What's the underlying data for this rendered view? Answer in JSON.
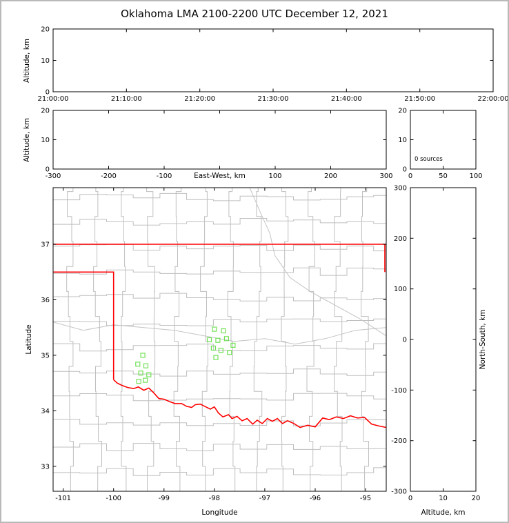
{
  "title": "Oklahoma LMA 2100-2200 UTC December 12, 2021",
  "colors": {
    "state_border": "#ff0000",
    "county_line": "#bfbfbf",
    "river_line": "#c4c4c4",
    "station_marker": "#70e054",
    "axis": "#000000",
    "plot_background": "#ffffff",
    "frame_border": "#b9b9b9"
  },
  "chart_data": [
    {
      "id": "time-height-panel",
      "type": "scatter",
      "xlabel": "",
      "ylabel": "Altitude, km",
      "xticks": [
        "21:00:00",
        "21:10:00",
        "21:20:00",
        "21:30:00",
        "21:40:00",
        "21:50:00",
        "22:00:00"
      ],
      "ylim": [
        0,
        20
      ],
      "yticks": [
        0,
        10,
        20
      ],
      "points": []
    },
    {
      "id": "eastwest-height-panel",
      "type": "scatter",
      "xlabel": "East-West, km",
      "ylabel": "Altitude, km",
      "xlim": [
        -300,
        300
      ],
      "xticks": [
        -300,
        -200,
        -100,
        0,
        100,
        200,
        300
      ],
      "ylim": [
        0,
        20
      ],
      "yticks": [
        0,
        10,
        20
      ],
      "points": []
    },
    {
      "id": "altitude-histogram-panel",
      "type": "line",
      "annotation": "0 sources",
      "xlim": [
        0,
        100
      ],
      "xticks": [
        0,
        50,
        100
      ],
      "ylim": [
        0,
        20
      ],
      "yticks": [
        0,
        10,
        20
      ],
      "points": []
    },
    {
      "id": "plan-view-map",
      "type": "scatter",
      "xlabel": "Longitude",
      "ylabel": "Latitude",
      "xlim": [
        -101.2,
        -94.59
      ],
      "xticks": [
        -101,
        -100,
        -99,
        -98,
        -97,
        -96,
        -95
      ],
      "ylim": [
        32.55,
        38.02
      ],
      "yticks": [
        33,
        34,
        35,
        36,
        37
      ],
      "stations": [
        [
          -98.0,
          35.47
        ],
        [
          -97.82,
          35.44
        ],
        [
          -98.1,
          35.28
        ],
        [
          -97.93,
          35.27
        ],
        [
          -97.76,
          35.3
        ],
        [
          -98.02,
          35.13
        ],
        [
          -97.87,
          35.09
        ],
        [
          -97.97,
          34.96
        ],
        [
          -97.63,
          35.18
        ],
        [
          -97.7,
          35.05
        ],
        [
          -99.42,
          35.0
        ],
        [
          -99.52,
          34.84
        ],
        [
          -99.36,
          34.81
        ],
        [
          -99.46,
          34.68
        ],
        [
          -99.3,
          34.65
        ],
        [
          -99.5,
          34.53
        ],
        [
          -99.37,
          34.55
        ]
      ],
      "state_boundary": {
        "north_lat": 37.0,
        "panhandle_south_lat": 36.5,
        "west_lon": -100.0,
        "east_lon": -94.618,
        "red_river": [
          [
            -100.0,
            34.56
          ],
          [
            -99.93,
            34.5
          ],
          [
            -99.84,
            34.46
          ],
          [
            -99.72,
            34.42
          ],
          [
            -99.6,
            34.4
          ],
          [
            -99.51,
            34.43
          ],
          [
            -99.4,
            34.37
          ],
          [
            -99.3,
            34.41
          ],
          [
            -99.21,
            34.33
          ],
          [
            -99.1,
            34.22
          ],
          [
            -99.0,
            34.21
          ],
          [
            -98.9,
            34.17
          ],
          [
            -98.78,
            34.13
          ],
          [
            -98.65,
            34.13
          ],
          [
            -98.55,
            34.08
          ],
          [
            -98.45,
            34.06
          ],
          [
            -98.38,
            34.11
          ],
          [
            -98.28,
            34.12
          ],
          [
            -98.17,
            34.07
          ],
          [
            -98.08,
            34.03
          ],
          [
            -98.0,
            34.07
          ],
          [
            -97.92,
            33.96
          ],
          [
            -97.83,
            33.89
          ],
          [
            -97.72,
            33.93
          ],
          [
            -97.65,
            33.86
          ],
          [
            -97.55,
            33.9
          ],
          [
            -97.45,
            33.82
          ],
          [
            -97.35,
            33.86
          ],
          [
            -97.24,
            33.76
          ],
          [
            -97.15,
            33.83
          ],
          [
            -97.05,
            33.77
          ],
          [
            -96.95,
            33.86
          ],
          [
            -96.85,
            33.81
          ],
          [
            -96.75,
            33.86
          ],
          [
            -96.65,
            33.77
          ],
          [
            -96.55,
            33.82
          ],
          [
            -96.42,
            33.77
          ],
          [
            -96.3,
            33.7
          ],
          [
            -96.15,
            33.74
          ],
          [
            -96.0,
            33.71
          ],
          [
            -95.85,
            33.87
          ],
          [
            -95.72,
            33.84
          ],
          [
            -95.58,
            33.89
          ],
          [
            -95.44,
            33.86
          ],
          [
            -95.3,
            33.91
          ],
          [
            -95.16,
            33.87
          ],
          [
            -95.02,
            33.88
          ],
          [
            -94.88,
            33.76
          ],
          [
            -94.75,
            33.73
          ],
          [
            -94.59,
            33.7
          ]
        ]
      },
      "rivers": [
        [
          [
            -101.2,
            35.6
          ],
          [
            -100.6,
            35.45
          ],
          [
            -100.0,
            35.55
          ],
          [
            -99.4,
            35.5
          ],
          [
            -98.8,
            35.45
          ],
          [
            -98.2,
            35.35
          ],
          [
            -97.6,
            35.25
          ],
          [
            -97.0,
            35.3
          ],
          [
            -96.4,
            35.2
          ],
          [
            -95.8,
            35.3
          ],
          [
            -95.2,
            35.45
          ],
          [
            -94.59,
            35.5
          ]
        ],
        [
          [
            -97.3,
            38.02
          ],
          [
            -97.1,
            37.6
          ],
          [
            -96.9,
            37.2
          ],
          [
            -96.8,
            36.8
          ],
          [
            -96.5,
            36.4
          ],
          [
            -96.1,
            36.15
          ],
          [
            -95.6,
            35.9
          ],
          [
            -95.1,
            35.65
          ],
          [
            -94.59,
            35.35
          ]
        ]
      ]
    },
    {
      "id": "northsouth-height-panel",
      "type": "scatter",
      "xlabel": "Altitude, km",
      "ylabel": "North-South, km",
      "xlim": [
        0,
        20
      ],
      "xticks": [
        0,
        10,
        20
      ],
      "ylim": [
        -300,
        300
      ],
      "yticks": [
        -300,
        -200,
        -100,
        0,
        100,
        200,
        300
      ],
      "points": []
    }
  ]
}
